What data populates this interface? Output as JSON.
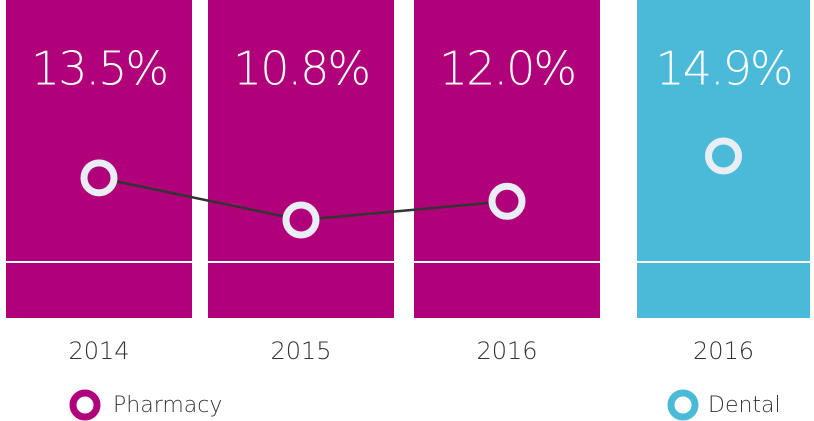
{
  "chart_data": {
    "type": "line",
    "series": [
      {
        "name": "Pharmacy",
        "color": "#b0007a",
        "categories": [
          "2014",
          "2015",
          "2016"
        ],
        "values": [
          13.5,
          10.8,
          12.0
        ],
        "value_labels": [
          "13.5%",
          "10.8%",
          "12.0%"
        ]
      },
      {
        "name": "Dental",
        "color": "#4bbad9",
        "categories": [
          "2016"
        ],
        "values": [
          14.9
        ],
        "value_labels": [
          "14.9%"
        ]
      }
    ]
  }
}
